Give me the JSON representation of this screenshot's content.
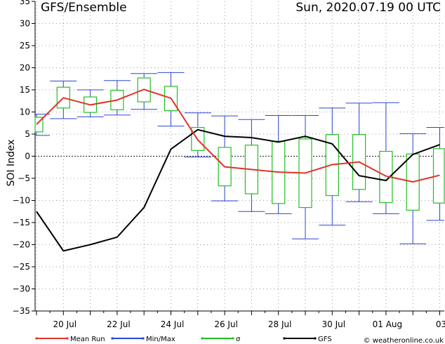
{
  "chart_data": {
    "type": "line",
    "title": "GFS/Ensemble",
    "subtitle": "Sun, 2020.07.19  00 UTC",
    "ylabel": "SOI Index",
    "ylim": [
      -35,
      35
    ],
    "yticks": [
      35,
      30,
      25,
      20,
      15,
      10,
      5,
      0,
      -5,
      -10,
      -15,
      -20,
      -25,
      -30,
      -35
    ],
    "xticks": [
      {
        "x": 1,
        "label": "20 Jul"
      },
      {
        "x": 3,
        "label": "22 Jul"
      },
      {
        "x": 5,
        "label": "24 Jul"
      },
      {
        "x": 7,
        "label": "26 Jul"
      },
      {
        "x": 9,
        "label": "28 Jul"
      },
      {
        "x": 11,
        "label": "30 Jul"
      },
      {
        "x": 13,
        "label": "01 Aug"
      },
      {
        "x": 15,
        "label": "03"
      }
    ],
    "x": [
      0,
      0.5,
      1,
      1.5,
      2,
      2.5,
      3,
      3.5,
      4,
      4.5,
      5,
      5.5,
      6,
      6.5,
      7,
      7.5,
      8,
      8.5,
      9,
      9.5,
      10,
      10.5,
      11,
      11.5,
      12,
      12.5,
      13,
      13.5,
      14,
      14.5,
      15,
      15.5
    ],
    "ensemble": [
      {
        "x": 0,
        "min": 4.7,
        "max": 9.5,
        "sd_low": 5.5,
        "sd_high": 8.8,
        "mean": 7.2
      },
      {
        "x": 1,
        "min": 8.5,
        "max": 17.0,
        "sd_low": 10.9,
        "sd_high": 15.6,
        "mean": 13.2
      },
      {
        "x": 2,
        "min": 8.9,
        "max": 15.0,
        "sd_low": 9.9,
        "sd_high": 13.4,
        "mean": 11.6
      },
      {
        "x": 3,
        "min": 9.3,
        "max": 17.1,
        "sd_low": 10.5,
        "sd_high": 14.9,
        "mean": 12.7
      },
      {
        "x": 4,
        "min": 10.6,
        "max": 18.7,
        "sd_low": 12.3,
        "sd_high": 17.7,
        "mean": 15.1
      },
      {
        "x": 5,
        "min": 6.8,
        "max": 18.9,
        "sd_low": 10.3,
        "sd_high": 15.8,
        "mean": 13.1
      },
      {
        "x": 6,
        "min": -0.2,
        "max": 9.8,
        "sd_low": 1.3,
        "sd_high": 6.5,
        "mean": 3.7
      },
      {
        "x": 7,
        "min": -10.1,
        "max": 9.1,
        "sd_low": -6.7,
        "sd_high": 2.0,
        "mean": -2.4
      },
      {
        "x": 8,
        "min": -12.5,
        "max": 8.3,
        "sd_low": -8.5,
        "sd_high": 2.5,
        "mean": -3.0
      },
      {
        "x": 9,
        "min": -13.0,
        "max": 9.2,
        "sd_low": -10.7,
        "sd_high": 3.4,
        "mean": -3.6
      },
      {
        "x": 10,
        "min": -18.7,
        "max": 9.2,
        "sd_low": -11.6,
        "sd_high": 3.9,
        "mean": -3.8
      },
      {
        "x": 11,
        "min": -15.6,
        "max": 10.9,
        "sd_low": -8.9,
        "sd_high": 4.9,
        "mean": -1.9
      },
      {
        "x": 12,
        "min": -10.3,
        "max": 12.0,
        "sd_low": -7.5,
        "sd_high": 4.9,
        "mean": -1.3
      },
      {
        "x": 13,
        "min": -13.0,
        "max": 12.1,
        "sd_low": -10.5,
        "sd_high": 1.1,
        "mean": -4.5
      },
      {
        "x": 14,
        "min": -19.8,
        "max": 5.1,
        "sd_low": -12.2,
        "sd_high": 0.5,
        "mean": -5.8
      },
      {
        "x": 15,
        "min": -14.5,
        "max": 6.5,
        "sd_low": -10.6,
        "sd_high": 1.7,
        "mean": -4.3
      }
    ],
    "gfs": [
      {
        "x": 0,
        "y": -12.5
      },
      {
        "x": 1,
        "y": -21.4
      },
      {
        "x": 2,
        "y": -20.0
      },
      {
        "x": 3,
        "y": -18.3
      },
      {
        "x": 4,
        "y": -11.6
      },
      {
        "x": 5,
        "y": 1.6
      },
      {
        "x": 6,
        "y": 6.0
      },
      {
        "x": 7,
        "y": 4.5
      },
      {
        "x": 8,
        "y": 4.2
      },
      {
        "x": 9,
        "y": 3.2
      },
      {
        "x": 10,
        "y": 4.5
      },
      {
        "x": 11,
        "y": 2.8
      },
      {
        "x": 12,
        "y": -4.4
      },
      {
        "x": 13,
        "y": -5.5
      },
      {
        "x": 14,
        "y": 0.4
      },
      {
        "x": 15,
        "y": 2.6
      }
    ],
    "colors": {
      "mean": "#e0342a",
      "minmax": "#2a46d2",
      "sd": "#22c022",
      "gfs": "#000000",
      "grid": "#9a9a9a"
    },
    "legend": {
      "placement": "bottom",
      "entries": [
        {
          "key": "mean",
          "label": "Mean Run"
        },
        {
          "key": "minmax",
          "label": "Min/Max"
        },
        {
          "key": "sd",
          "label": "σ"
        },
        {
          "key": "gfs",
          "label": "GFS"
        }
      ]
    },
    "credit": "© weatheronline.co.uk",
    "grid": true
  }
}
